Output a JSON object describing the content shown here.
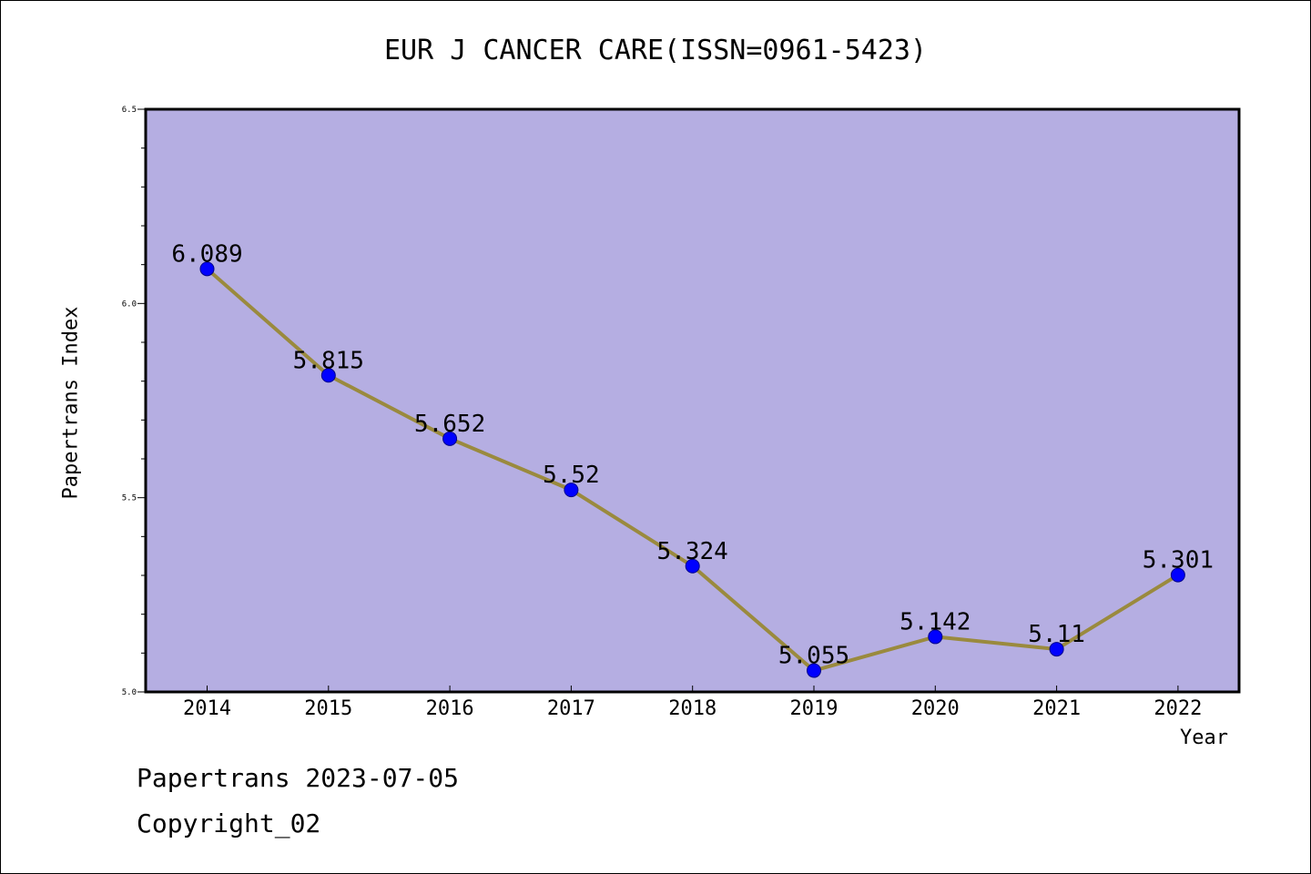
{
  "chart_data": {
    "type": "line",
    "title": "EUR J CANCER CARE(ISSN=0961-5423)",
    "xlabel": "Year",
    "ylabel": "Papertrans Index",
    "categories": [
      "2014",
      "2015",
      "2016",
      "2017",
      "2018",
      "2019",
      "2020",
      "2021",
      "2022"
    ],
    "values": [
      6.089,
      5.815,
      5.652,
      5.52,
      5.324,
      5.055,
      5.142,
      5.11,
      5.301
    ],
    "value_labels": [
      "6.089",
      "5.815",
      "5.652",
      "5.52",
      "5.324",
      "5.055",
      "5.142",
      "5.11",
      "5.301"
    ],
    "ylim": [
      5.0,
      6.5
    ],
    "yticks": [
      "5.0",
      "5.5",
      "6.0",
      "6.5"
    ],
    "grid": false,
    "colors": {
      "plot_background": "#b5aee2",
      "line": "#9a8a3e",
      "marker": "#0000ff"
    }
  },
  "footer": {
    "line1": "Papertrans 2023-07-05",
    "line2": "Copyright_02"
  }
}
